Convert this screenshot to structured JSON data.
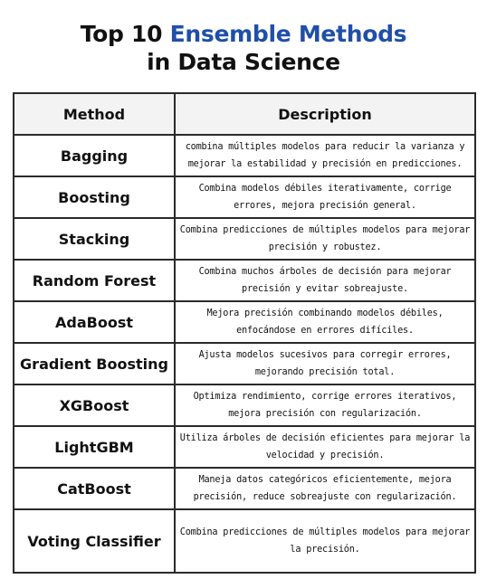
{
  "title": {
    "prefix": "Top 10 ",
    "accent": "Ensemble Methods",
    "line2": "in Data Science",
    "accent_color": "#1f4fa8"
  },
  "table": {
    "headers": [
      "Method",
      "Description"
    ],
    "rows": [
      {
        "method": "Bagging",
        "description": "combina múltiples modelos para reducir la varianza y mejorar la estabilidad y precisión en predicciones."
      },
      {
        "method": "Boosting",
        "description": "Combina modelos débiles iterativamente, corrige errores, mejora precisión general."
      },
      {
        "method": "Stacking",
        "description": "Combina predicciones de múltiples modelos para mejorar precisión y robustez."
      },
      {
        "method": "Random Forest",
        "description": "Combina muchos árboles de decisión para mejorar precisión y evitar sobreajuste."
      },
      {
        "method": "AdaBoost",
        "description": "Mejora precisión combinando modelos débiles, enfocándose en errores difíciles."
      },
      {
        "method": "Gradient Boosting",
        "description": "Ajusta modelos sucesivos para corregir errores, mejorando precisión total."
      },
      {
        "method": "XGBoost",
        "description": "Optimiza rendimiento, corrige errores iterativos, mejora precisión con regularización."
      },
      {
        "method": "LightGBM",
        "description": "Utiliza árboles de decisión eficientes para mejorar la velocidad y precisión."
      },
      {
        "method": "CatBoost",
        "description": "Maneja datos categóricos eficientemente, mejora precisión, reduce sobreajuste con regularización."
      },
      {
        "method": "Voting Classifier",
        "description": "Combina predicciones de múltiples modelos para mejorar la precisión."
      }
    ]
  }
}
